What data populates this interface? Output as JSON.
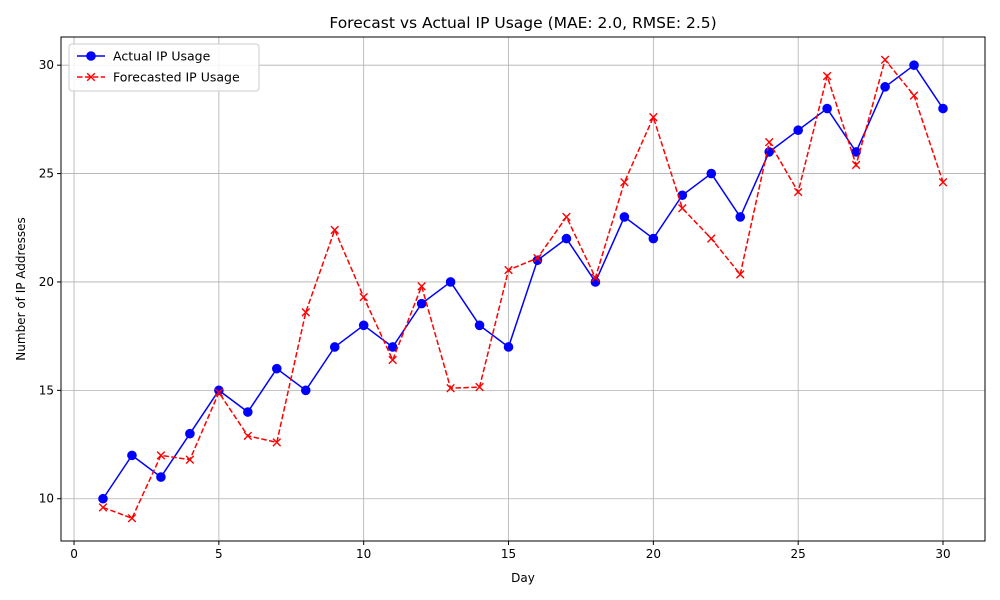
{
  "chart_data": {
    "type": "line",
    "title": "Forecast vs Actual IP Usage (MAE: 2.0, RMSE: 2.5)",
    "xlabel": "Day",
    "ylabel": "Number of IP Addresses",
    "xlim": [
      -0.45,
      31.45
    ],
    "ylim": [
      8.05,
      31.3
    ],
    "xticks": [
      0,
      5,
      10,
      15,
      20,
      25,
      30
    ],
    "yticks": [
      10,
      15,
      20,
      25,
      30
    ],
    "grid": true,
    "legend": "upper-left",
    "x": [
      1,
      2,
      3,
      4,
      5,
      6,
      7,
      8,
      9,
      10,
      11,
      12,
      13,
      14,
      15,
      16,
      17,
      18,
      19,
      20,
      21,
      22,
      23,
      24,
      25,
      26,
      27,
      28,
      29,
      30
    ],
    "series": [
      {
        "name": "Actual IP Usage",
        "color": "#0000ff",
        "line_style": "solid",
        "marker": "circle",
        "values": [
          10,
          12,
          11,
          13,
          15,
          14,
          16,
          15,
          17,
          18,
          17,
          19,
          20,
          18,
          17,
          21,
          22,
          20,
          23,
          22,
          24,
          25,
          23,
          26,
          27,
          28,
          26,
          29,
          30,
          28
        ]
      },
      {
        "name": "Forecasted IP Usage",
        "color": "#ff0000",
        "line_style": "dashed",
        "marker": "x",
        "values": [
          9.6,
          9.1,
          12.0,
          11.8,
          14.9,
          12.9,
          12.6,
          18.6,
          22.4,
          19.3,
          16.4,
          19.8,
          15.1,
          15.15,
          20.55,
          21.1,
          23.0,
          20.2,
          24.6,
          27.6,
          23.4,
          22.0,
          20.35,
          26.45,
          24.15,
          29.5,
          25.4,
          30.25,
          28.6,
          24.6
        ]
      }
    ]
  }
}
